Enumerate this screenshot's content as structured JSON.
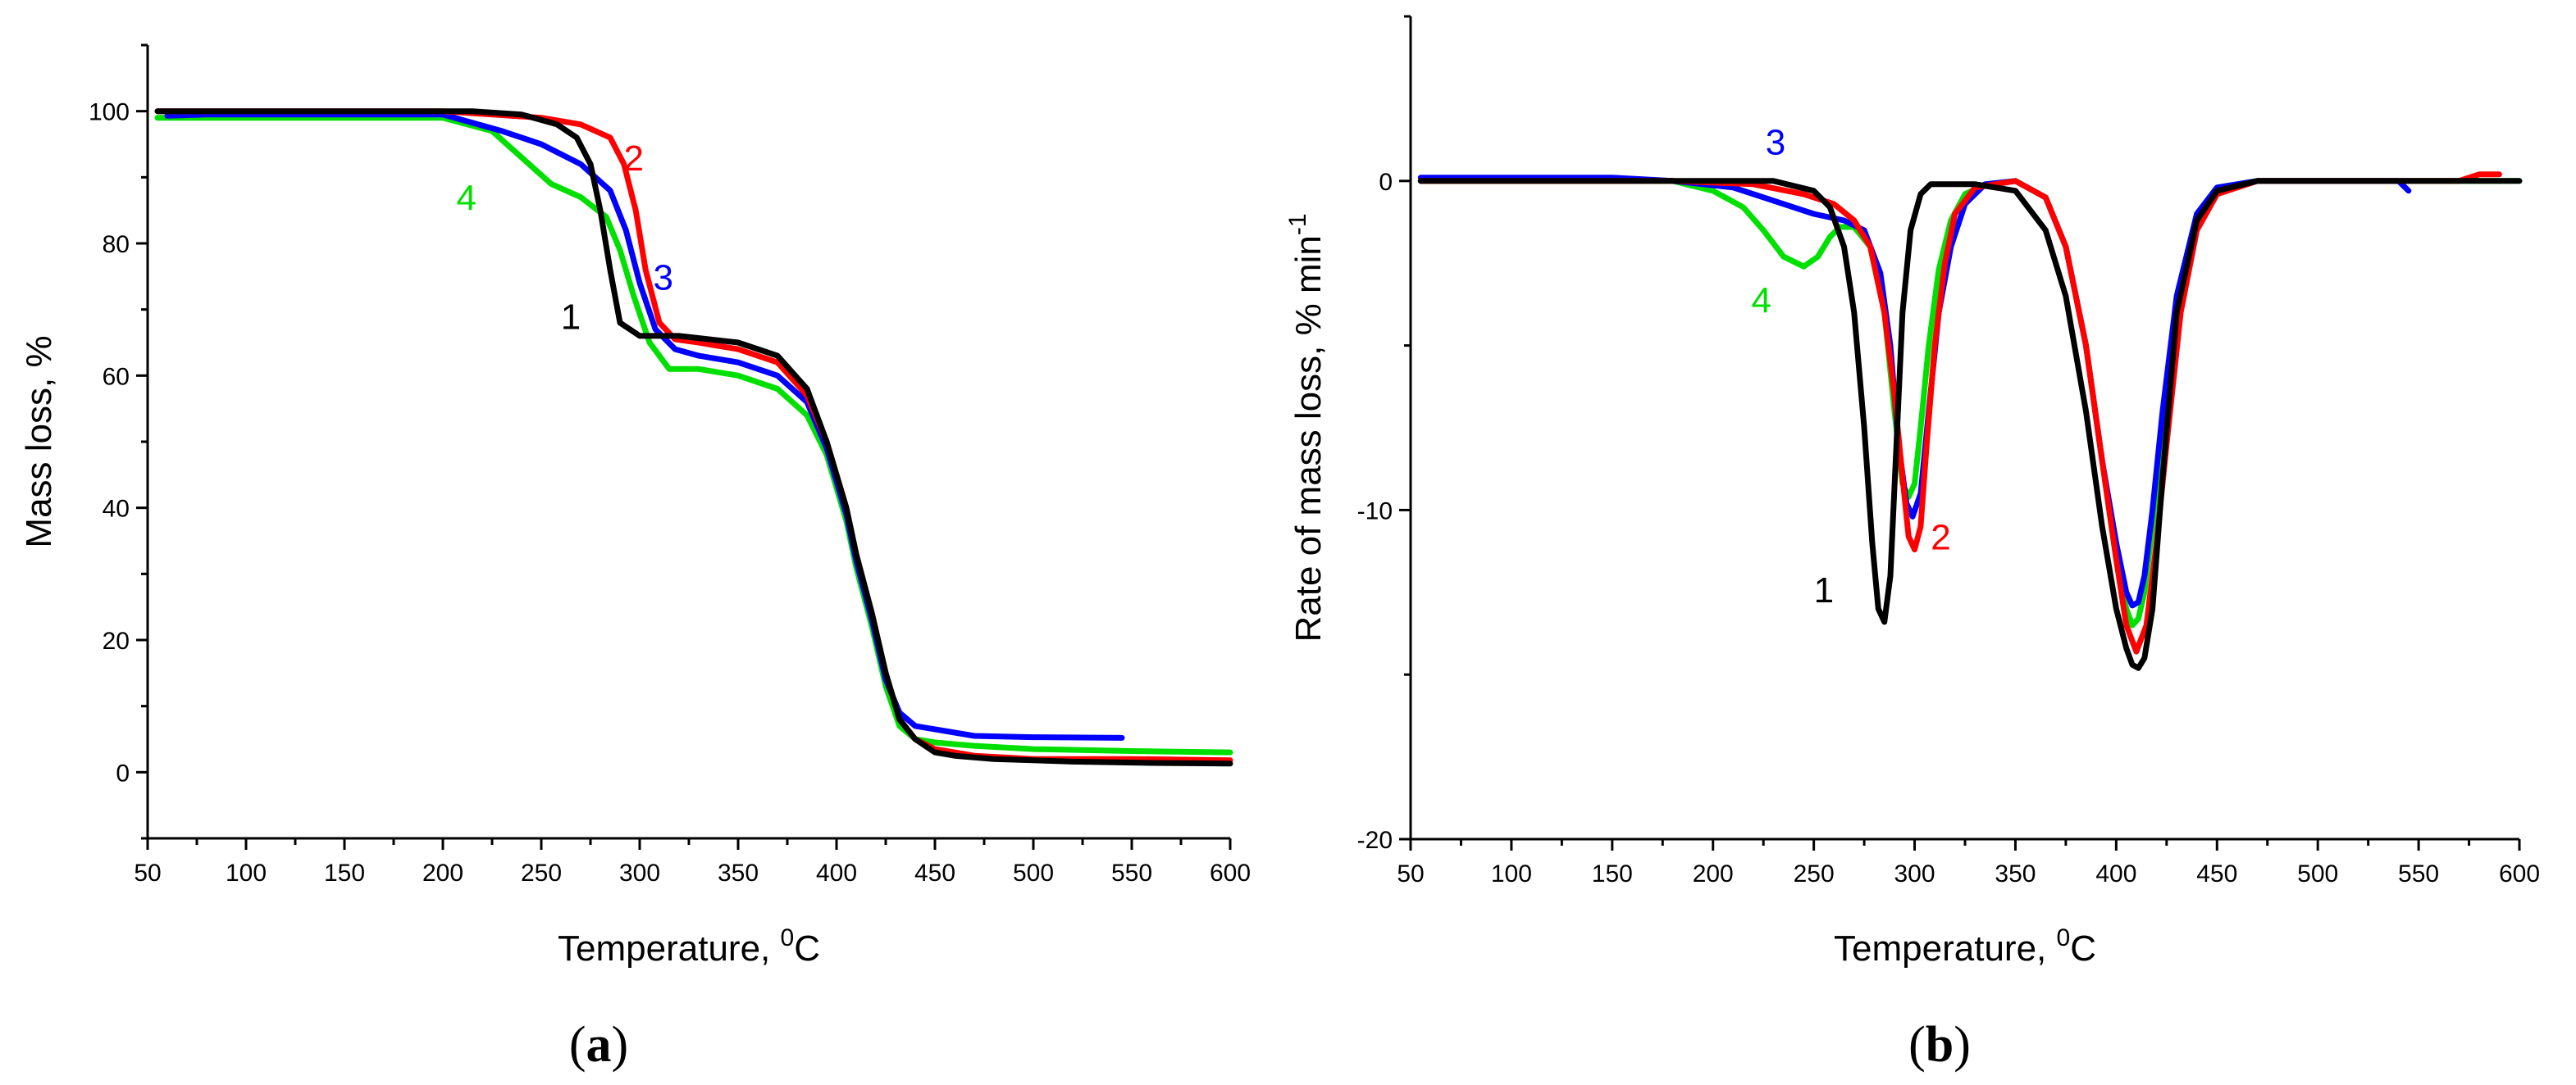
{
  "colors": {
    "s1": "#000000",
    "s2": "#ff0000",
    "s3": "#0000ff",
    "s4": "#00e000"
  },
  "chart_data": [
    {
      "type": "line",
      "panel_label_parts": [
        "(",
        "a",
        ")"
      ],
      "xlabel": "Temperature, ",
      "xlabel_sup": "0",
      "xlabel_unit": "C",
      "ylabel": "Mass loss, %",
      "xlim": [
        50,
        600
      ],
      "ylim": [
        -10,
        110
      ],
      "xticks": [
        50,
        100,
        150,
        200,
        250,
        300,
        350,
        400,
        450,
        500,
        550,
        600
      ],
      "yticks": [
        0,
        20,
        40,
        60,
        80,
        100
      ],
      "series": [
        {
          "name": "1",
          "color_key": "s1",
          "label_at": [
            265,
            69
          ],
          "x": [
            55,
            215,
            240,
            258,
            268,
            275,
            280,
            285,
            290,
            300,
            320,
            350,
            370,
            385,
            395,
            405,
            410,
            418,
            425,
            432,
            440,
            450,
            460,
            480,
            520,
            560,
            600
          ],
          "y": [
            100,
            100,
            99.5,
            98,
            96,
            92,
            85,
            76,
            68,
            66,
            66,
            65,
            63,
            58,
            50,
            40,
            33,
            24,
            15,
            8,
            5,
            3,
            2.5,
            2,
            1.6,
            1.4,
            1.3
          ]
        },
        {
          "name": "2",
          "color_key": "s2",
          "label_at": [
            297,
            93
          ],
          "x": [
            55,
            200,
            250,
            270,
            285,
            292,
            298,
            303,
            310,
            318,
            330,
            350,
            370,
            385,
            395,
            405,
            410,
            418,
            425,
            432,
            440,
            450,
            470,
            500,
            550,
            600
          ],
          "y": [
            100,
            100,
            99,
            98,
            96,
            92,
            85,
            76,
            68,
            65.5,
            65,
            64,
            62,
            57,
            50,
            40,
            33,
            24,
            15,
            8,
            5,
            3.5,
            2.5,
            2,
            2,
            1.8
          ]
        },
        {
          "name": "3",
          "color_key": "s3",
          "label_at": [
            312,
            75
          ],
          "x": [
            60,
            80,
            200,
            230,
            250,
            270,
            285,
            293,
            300,
            308,
            318,
            330,
            350,
            370,
            385,
            395,
            405,
            410,
            418,
            425,
            432,
            440,
            450,
            470,
            500,
            545
          ],
          "y": [
            99.3,
            99.5,
            99.5,
            97,
            95,
            92,
            88,
            82,
            74,
            67,
            64,
            63,
            62,
            60,
            56,
            49,
            39,
            32,
            23,
            14,
            9,
            7,
            6.5,
            5.5,
            5.3,
            5.2
          ]
        },
        {
          "name": "4",
          "color_key": "s4",
          "label_at": [
            212,
            87
          ],
          "x": [
            55,
            200,
            225,
            240,
            255,
            270,
            283,
            290,
            297,
            305,
            315,
            330,
            350,
            370,
            385,
            395,
            405,
            410,
            418,
            425,
            432,
            440,
            450,
            470,
            500,
            550,
            600
          ],
          "y": [
            99,
            99,
            97,
            93,
            89,
            87,
            84,
            79,
            72,
            65,
            61,
            61,
            60,
            58,
            54,
            48,
            38,
            31,
            22,
            13,
            7,
            5,
            4.5,
            4,
            3.5,
            3.2,
            3
          ]
        }
      ]
    },
    {
      "type": "line",
      "panel_label_parts": [
        "(",
        "b",
        ")"
      ],
      "xlabel": "Temperature, ",
      "xlabel_sup": "0",
      "xlabel_unit": "C",
      "ylabel": "Rate of mass loss, % min",
      "ylabel_sup": "-1",
      "xlim": [
        50,
        600
      ],
      "ylim": [
        -20,
        5
      ],
      "xticks": [
        50,
        100,
        150,
        200,
        250,
        300,
        350,
        400,
        450,
        500,
        550,
        600
      ],
      "yticks": [
        -20,
        -10,
        0
      ],
      "series": [
        {
          "name": "1",
          "color_key": "s1",
          "label_at": [
            255,
            -12.4
          ],
          "x": [
            55,
            230,
            250,
            258,
            265,
            270,
            275,
            279,
            282,
            285,
            288,
            291,
            294,
            298,
            303,
            308,
            330,
            350,
            365,
            375,
            385,
            393,
            400,
            405,
            408,
            411,
            414,
            418,
            423,
            430,
            440,
            450,
            470,
            500,
            600
          ],
          "y": [
            0,
            0,
            -0.3,
            -0.8,
            -2,
            -4,
            -7.5,
            -11,
            -13,
            -13.4,
            -12,
            -8,
            -4,
            -1.5,
            -0.4,
            -0.1,
            -0.1,
            -0.3,
            -1.5,
            -3.5,
            -7,
            -10.5,
            -13,
            -14.2,
            -14.7,
            -14.8,
            -14.5,
            -13,
            -9,
            -4,
            -1.2,
            -0.3,
            0,
            0,
            0
          ]
        },
        {
          "name": "2",
          "color_key": "s2",
          "label_at": [
            313,
            -10.8
          ],
          "x": [
            55,
            180,
            220,
            245,
            260,
            270,
            278,
            285,
            290,
            294,
            297,
            300,
            303,
            306,
            310,
            315,
            320,
            330,
            350,
            365,
            375,
            385,
            393,
            400,
            405,
            410,
            415,
            420,
            425,
            432,
            440,
            450,
            470,
            500,
            570,
            580,
            590
          ],
          "y": [
            0,
            0,
            -0.1,
            -0.4,
            -0.7,
            -1.2,
            -2,
            -4,
            -6.5,
            -9,
            -10.8,
            -11.2,
            -10.5,
            -8,
            -5,
            -2.5,
            -1,
            -0.2,
            0,
            -0.5,
            -2,
            -5,
            -8.5,
            -11.5,
            -13.5,
            -14.3,
            -13.5,
            -11,
            -8,
            -4,
            -1.5,
            -0.4,
            0,
            0,
            0,
            0.2,
            0.2
          ]
        },
        {
          "name": "3",
          "color_key": "s3",
          "label_at": [
            231,
            1.2
          ],
          "x": [
            55,
            150,
            180,
            210,
            230,
            250,
            265,
            275,
            283,
            288,
            292,
            296,
            299,
            303,
            307,
            312,
            318,
            325,
            335,
            350,
            365,
            375,
            385,
            393,
            400,
            405,
            408,
            411,
            414,
            418,
            423,
            430,
            440,
            450,
            470,
            500,
            540,
            545
          ],
          "y": [
            0.1,
            0.1,
            0,
            -0.2,
            -0.6,
            -1,
            -1.2,
            -1.5,
            -2.8,
            -5,
            -8,
            -9.8,
            -10.2,
            -9.5,
            -7,
            -4,
            -2,
            -0.7,
            -0.1,
            0,
            -0.5,
            -2,
            -5,
            -8.5,
            -11,
            -12.5,
            -12.9,
            -12.8,
            -12,
            -10,
            -7,
            -3.5,
            -1,
            -0.2,
            0,
            0,
            0,
            -0.3
          ]
        },
        {
          "name": "4",
          "color_key": "s4",
          "label_at": [
            224,
            -3.6
          ],
          "x": [
            55,
            180,
            200,
            215,
            225,
            235,
            245,
            252,
            258,
            263,
            270,
            278,
            285,
            290,
            294,
            297,
            300,
            303,
            307,
            312,
            318,
            325,
            335,
            350,
            365,
            375,
            385,
            393,
            400,
            405,
            408,
            411,
            414,
            418,
            423,
            430,
            440,
            450,
            470,
            500,
            600
          ],
          "y": [
            0,
            0,
            -0.3,
            -0.8,
            -1.5,
            -2.3,
            -2.6,
            -2.3,
            -1.7,
            -1.4,
            -1.4,
            -2,
            -4,
            -7,
            -9.2,
            -9.6,
            -9.2,
            -7.5,
            -5,
            -2.7,
            -1.2,
            -0.4,
            -0.1,
            0,
            -0.5,
            -2,
            -5,
            -8.5,
            -11.5,
            -13,
            -13.5,
            -13.3,
            -12.5,
            -10.5,
            -7.5,
            -3.5,
            -1,
            -0.2,
            0,
            0,
            0
          ]
        }
      ]
    }
  ]
}
